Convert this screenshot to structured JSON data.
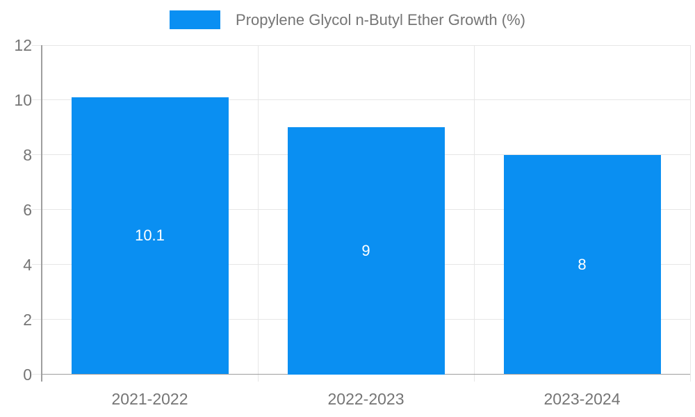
{
  "legend": {
    "label": "Propylene Glycol n-Butyl Ether Growth (%)"
  },
  "colors": {
    "bar": "#0a8ff2",
    "grid": "#e6e6e6",
    "axis": "#9e9e9e",
    "text": "#757575",
    "bar_label": "#ffffff",
    "background": "#ffffff"
  },
  "chart_data": {
    "type": "bar",
    "title": "",
    "xlabel": "",
    "ylabel": "",
    "categories": [
      "2021-2022",
      "2022-2023",
      "2023-2024"
    ],
    "values": [
      10.1,
      9,
      8
    ],
    "series_name": "Propylene Glycol n-Butyl Ether Growth (%)",
    "value_labels": [
      "10.1",
      "9",
      "8"
    ],
    "value_labels_position": "inside-center",
    "ylim": [
      0,
      12
    ],
    "yticks": [
      0,
      2,
      4,
      6,
      8,
      10,
      12
    ],
    "grid": true,
    "legend_position": "top-center"
  }
}
